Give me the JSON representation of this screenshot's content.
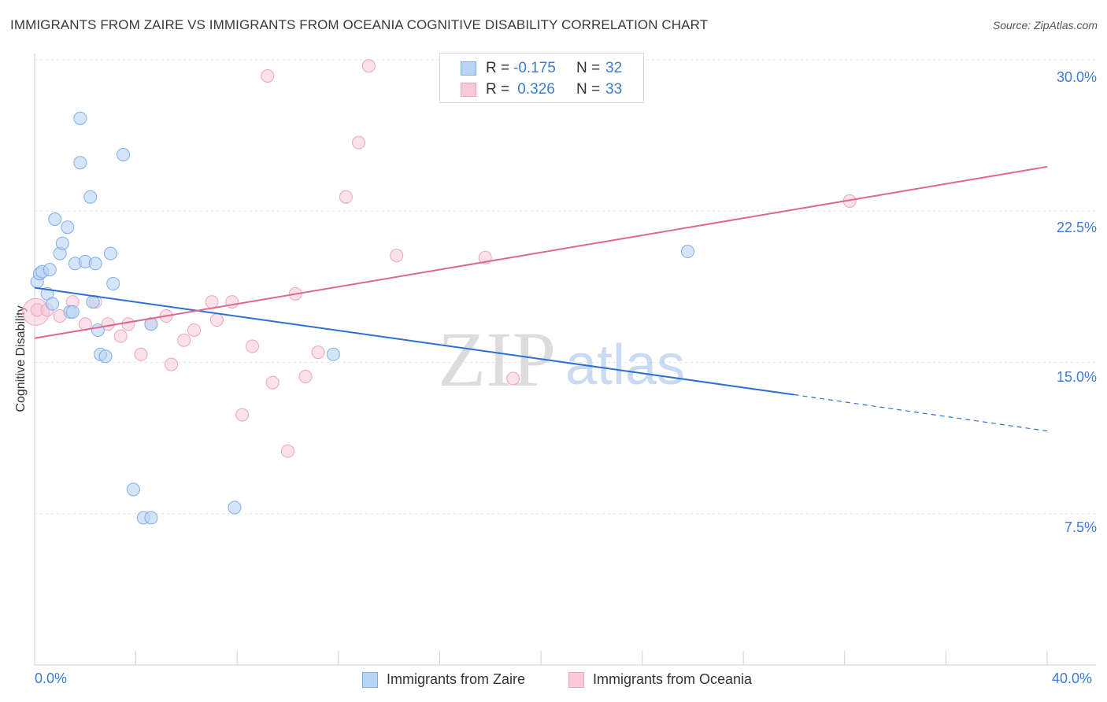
{
  "title": "IMMIGRANTS FROM ZAIRE VS IMMIGRANTS FROM OCEANIA COGNITIVE DISABILITY CORRELATION CHART",
  "source": "Source: ZipAtlas.com",
  "watermark": {
    "zip": "ZIP",
    "atlas": "atlas"
  },
  "legend_top": {
    "rows": [
      {
        "r_label": "R =",
        "r_value": "-0.175",
        "n_label": "N =",
        "n_value": "32"
      },
      {
        "r_label": "R =",
        "r_value": " 0.326",
        "n_label": "N =",
        "n_value": "33"
      }
    ]
  },
  "legend_bottom": {
    "series_a": "Immigrants from Zaire",
    "series_b": "Immigrants from Oceania"
  },
  "colors": {
    "zaire_fill": "#b9d3f5",
    "zaire_stroke": "#7eaee6",
    "zaire_line": "#2e6fd2",
    "oceania_fill": "#f8c9d8",
    "oceania_stroke": "#eea3bd",
    "oceania_line": "#e0678f",
    "tick_text": "#3d7bd6",
    "grid": "#e3e3e3"
  },
  "chart_data": {
    "type": "scatter",
    "title": "IMMIGRANTS FROM ZAIRE VS IMMIGRANTS FROM OCEANIA COGNITIVE DISABILITY CORRELATION CHART",
    "xlabel": "",
    "ylabel": "Cognitive Disability",
    "xlim": [
      0,
      40
    ],
    "ylim": [
      0,
      31.5
    ],
    "x_tick_labels": [
      "0.0%",
      "40.0%"
    ],
    "y_ticks": [
      7.5,
      15.0,
      22.5,
      30.0
    ],
    "y_tick_labels": [
      "7.5%",
      "15.0%",
      "22.5%",
      "30.0%"
    ],
    "grid": true,
    "legend_placement": "top-center",
    "series": [
      {
        "name": "Immigrants from Zaire",
        "R": -0.175,
        "N": 32,
        "trend": {
          "x": [
            0,
            30
          ],
          "y": [
            18.7,
            13.4
          ],
          "dashed_to": {
            "x": 40,
            "y": 11.6
          }
        },
        "points": [
          [
            0.1,
            19.0
          ],
          [
            0.2,
            19.4
          ],
          [
            0.3,
            19.5
          ],
          [
            0.5,
            18.4
          ],
          [
            0.7,
            17.9
          ],
          [
            0.6,
            19.6
          ],
          [
            0.8,
            22.1
          ],
          [
            1.0,
            20.4
          ],
          [
            1.1,
            20.9
          ],
          [
            1.3,
            21.7
          ],
          [
            1.4,
            17.5
          ],
          [
            1.5,
            17.5
          ],
          [
            1.6,
            19.9
          ],
          [
            1.8,
            27.1
          ],
          [
            1.8,
            24.9
          ],
          [
            2.0,
            20.0
          ],
          [
            2.2,
            23.2
          ],
          [
            2.3,
            18.0
          ],
          [
            2.4,
            19.9
          ],
          [
            2.5,
            16.6
          ],
          [
            2.6,
            15.4
          ],
          [
            2.8,
            15.3
          ],
          [
            3.0,
            20.4
          ],
          [
            3.1,
            18.9
          ],
          [
            3.5,
            25.3
          ],
          [
            3.9,
            8.7
          ],
          [
            4.3,
            7.3
          ],
          [
            4.6,
            7.3
          ],
          [
            4.6,
            16.9
          ],
          [
            7.9,
            7.8
          ],
          [
            11.8,
            15.4
          ],
          [
            25.8,
            20.5
          ]
        ]
      },
      {
        "name": "Immigrants from Oceania",
        "R": 0.326,
        "N": 33,
        "trend": {
          "x": [
            0,
            40
          ],
          "y": [
            16.2,
            24.7
          ]
        },
        "points": [
          [
            0.1,
            17.6
          ],
          [
            0.5,
            17.6
          ],
          [
            1.0,
            17.3
          ],
          [
            1.5,
            18.0
          ],
          [
            2.0,
            16.9
          ],
          [
            2.4,
            18.0
          ],
          [
            2.9,
            16.9
          ],
          [
            3.4,
            16.3
          ],
          [
            3.7,
            16.9
          ],
          [
            4.2,
            15.4
          ],
          [
            4.6,
            16.9
          ],
          [
            5.2,
            17.3
          ],
          [
            5.4,
            14.9
          ],
          [
            5.9,
            16.1
          ],
          [
            6.3,
            16.6
          ],
          [
            7.0,
            18.0
          ],
          [
            7.2,
            17.1
          ],
          [
            7.8,
            18.0
          ],
          [
            8.2,
            12.4
          ],
          [
            8.6,
            15.8
          ],
          [
            9.2,
            29.2
          ],
          [
            9.4,
            14.0
          ],
          [
            10.0,
            10.6
          ],
          [
            10.3,
            18.4
          ],
          [
            10.7,
            14.3
          ],
          [
            11.2,
            15.5
          ],
          [
            12.3,
            23.2
          ],
          [
            12.8,
            25.9
          ],
          [
            13.2,
            29.7
          ],
          [
            14.3,
            20.3
          ],
          [
            17.8,
            20.2
          ],
          [
            18.9,
            14.2
          ],
          [
            32.2,
            23.0
          ]
        ]
      }
    ]
  }
}
